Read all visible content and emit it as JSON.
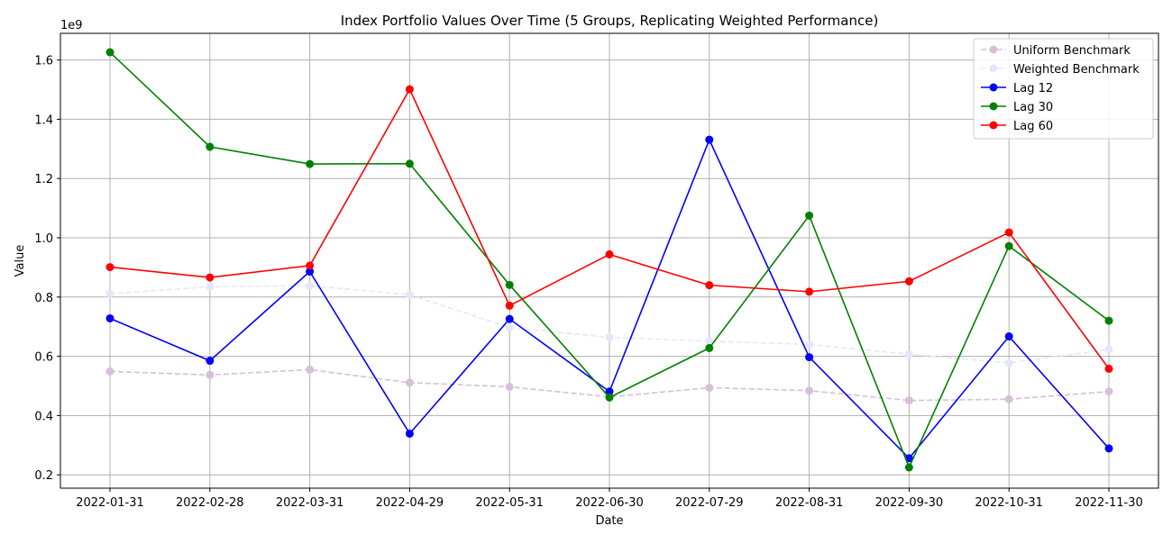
{
  "chart_data": {
    "type": "line",
    "title": "Index Portfolio Values Over Time (5 Groups, Replicating Weighted Performance)",
    "xlabel": "Date",
    "ylabel": "Value",
    "y_offset_label": "1e9",
    "categories": [
      "2022-01-31",
      "2022-02-28",
      "2022-03-31",
      "2022-04-29",
      "2022-05-31",
      "2022-06-30",
      "2022-07-29",
      "2022-08-31",
      "2022-09-30",
      "2022-10-31",
      "2022-11-30"
    ],
    "ylim": [
      0.155,
      1.69
    ],
    "yticks": [
      0.2,
      0.4,
      0.6,
      0.8,
      1.0,
      1.2,
      1.4,
      1.6
    ],
    "ytick_labels": [
      "0.2",
      "0.4",
      "0.6",
      "0.8",
      "1.0",
      "1.2",
      "1.4",
      "1.6"
    ],
    "grid": true,
    "legend_position": "top-right",
    "series": [
      {
        "name": "Uniform Benchmark",
        "color": "#d8bfd8",
        "dashed": true,
        "values": [
          0.549,
          0.537,
          0.555,
          0.511,
          0.497,
          0.463,
          0.494,
          0.484,
          0.451,
          0.455,
          0.481
        ]
      },
      {
        "name": "Weighted Benchmark",
        "color": "#e6e6fa",
        "dashed": true,
        "values": [
          0.811,
          0.835,
          0.838,
          0.808,
          0.697,
          0.664,
          0.651,
          0.64,
          0.607,
          0.578,
          0.623
        ]
      },
      {
        "name": "Lag 12",
        "color": "#0000ff",
        "dashed": false,
        "values": [
          0.728,
          0.585,
          0.886,
          0.339,
          0.726,
          0.481,
          1.331,
          0.597,
          0.256,
          0.667,
          0.289
        ]
      },
      {
        "name": "Lag 30",
        "color": "#008000",
        "dashed": false,
        "values": [
          1.626,
          1.307,
          1.249,
          1.25,
          0.841,
          0.461,
          0.628,
          1.075,
          0.225,
          0.972,
          0.72
        ]
      },
      {
        "name": "Lag 60",
        "color": "#ff0000",
        "dashed": false,
        "values": [
          0.901,
          0.866,
          0.906,
          1.501,
          0.771,
          0.944,
          0.84,
          0.818,
          0.853,
          1.018,
          0.558
        ]
      }
    ]
  }
}
